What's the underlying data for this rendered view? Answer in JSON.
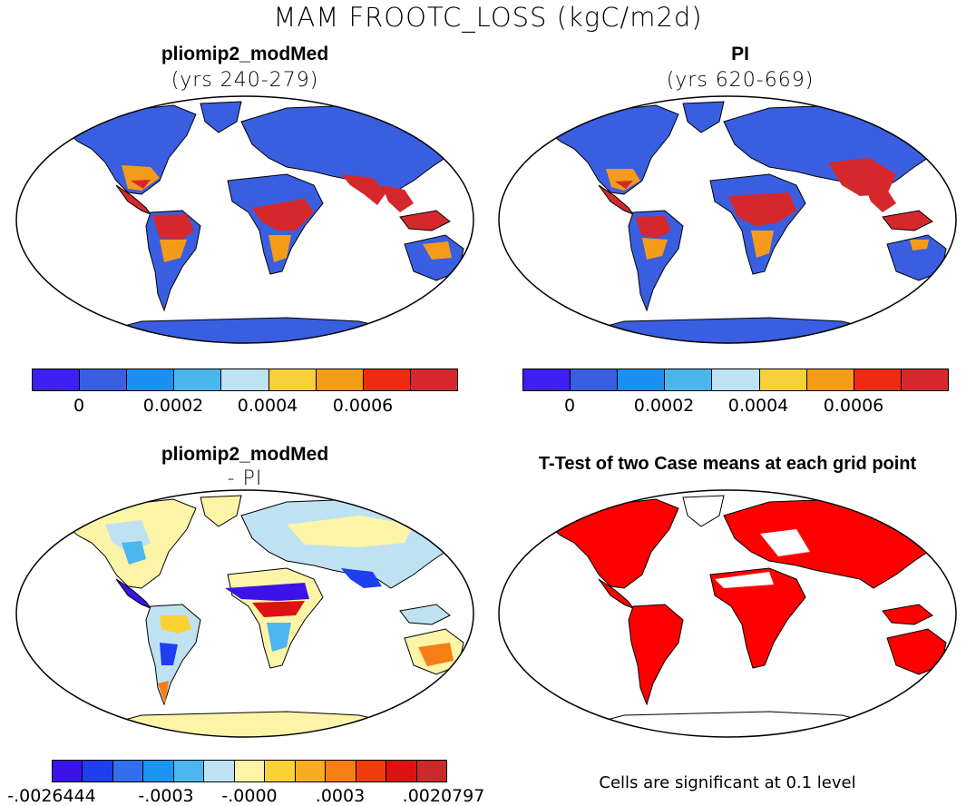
{
  "figure": {
    "title": "MAM FROOTC_LOSS (kgC/m2d)"
  },
  "panels": [
    {
      "title": "pliomip2_modMed",
      "subtitle": "(yrs 240-279)",
      "colorbar": {
        "colors": [
          "#3d1ff0",
          "#3a5ee0",
          "#1c8ef0",
          "#4ab6ee",
          "#bde3f2",
          "#f7cf3a",
          "#f59b1a",
          "#ee2a10",
          "#d4282c"
        ],
        "ticks": [
          "0",
          "0.0002",
          "0.0004",
          "0.0006"
        ]
      }
    },
    {
      "title": "PI",
      "subtitle": "(yrs 620-669)",
      "colorbar": {
        "colors": [
          "#3d1ff0",
          "#3a5ee0",
          "#1c8ef0",
          "#4ab6ee",
          "#bde3f2",
          "#f7cf3a",
          "#f59b1a",
          "#ee2a10",
          "#d4282c"
        ],
        "ticks": [
          "0",
          "0.0002",
          "0.0004",
          "0.0006"
        ]
      }
    },
    {
      "title": "pliomip2_modMed",
      "subtitle": "- PI",
      "colorbar": {
        "colors": [
          "#3b12e8",
          "#1e3ef0",
          "#3070ee",
          "#1a96f2",
          "#4cb6f0",
          "#bfe2f2",
          "#fcf5a8",
          "#fbd234",
          "#f8ac22",
          "#f67e16",
          "#f23c0e",
          "#dd1212",
          "#cc2a2a"
        ],
        "ticks": [
          "-.0026444",
          "-.0003",
          "-.0000",
          ".0003",
          ".0020797"
        ]
      }
    },
    {
      "title": "T-Test of two Case means at each grid point",
      "note": "Cells are significant at 0.1 level"
    }
  ],
  "colors": {
    "ocean": "#ffffff",
    "coast": "#000000",
    "significant": "#ff0000"
  }
}
